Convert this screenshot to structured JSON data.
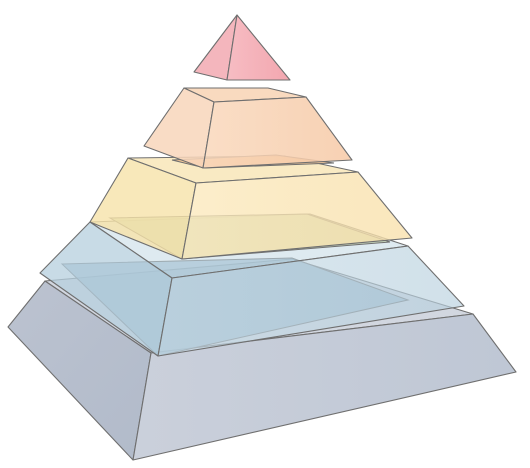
{
  "diagram": {
    "type": "layered-pyramid",
    "layer_count": 5,
    "layers": [
      {
        "position": "top",
        "color": "#f3a7b0"
      },
      {
        "position": "second",
        "color": "#f5c69c"
      },
      {
        "position": "middle",
        "color": "#f5dca0"
      },
      {
        "position": "fourth",
        "color": "#a9c8d9"
      },
      {
        "position": "base",
        "color": "#a8b4c6"
      }
    ],
    "text_labels": []
  }
}
